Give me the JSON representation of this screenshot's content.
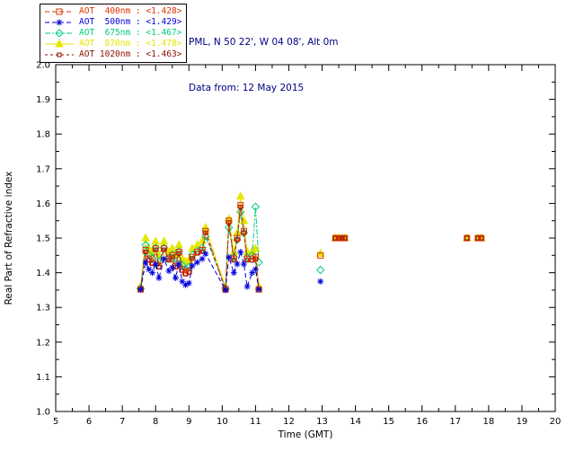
{
  "header": {
    "location": "PML, N 50 22', W 04 08', Alt 0m",
    "date_line": "Data from: 12 May 2015",
    "text_color": "#000080"
  },
  "chart_data": {
    "type": "line",
    "title": "",
    "xlabel": "Time (GMT)",
    "ylabel": "Real Part of Refractive index",
    "xlim": [
      5,
      20
    ],
    "ylim": [
      1.0,
      2.0
    ],
    "xticks": [
      5,
      6,
      7,
      8,
      9,
      10,
      11,
      12,
      13,
      14,
      15,
      16,
      17,
      18,
      19,
      20
    ],
    "yticks": [
      1.0,
      1.1,
      1.2,
      1.3,
      1.4,
      1.5,
      1.6,
      1.7,
      1.8,
      1.9,
      2.0
    ],
    "grid": false,
    "legend_position": "top-left-outside",
    "series": [
      {
        "name": "AOT  400nm",
        "avg": "<1.428>",
        "color": "#dd3300",
        "marker": "square",
        "marker_size": 3,
        "dash": "5,3",
        "z": 3,
        "segments": [
          [
            [
              7.55,
              1.352
            ],
            [
              7.7,
              1.465
            ],
            [
              7.8,
              1.44
            ],
            [
              7.9,
              1.43
            ],
            [
              8.0,
              1.47
            ],
            [
              8.1,
              1.42
            ],
            [
              8.25,
              1.47
            ],
            [
              8.4,
              1.44
            ],
            [
              8.5,
              1.45
            ],
            [
              8.6,
              1.42
            ],
            [
              8.7,
              1.46
            ],
            [
              8.8,
              1.41
            ],
            [
              8.9,
              1.4
            ],
            [
              9.0,
              1.405
            ],
            [
              9.1,
              1.445
            ],
            [
              9.25,
              1.46
            ],
            [
              9.4,
              1.465
            ],
            [
              9.5,
              1.52
            ],
            [
              10.1,
              1.352
            ],
            [
              10.2,
              1.55
            ],
            [
              10.35,
              1.44
            ],
            [
              10.45,
              1.5
            ],
            [
              10.55,
              1.595
            ],
            [
              10.65,
              1.52
            ],
            [
              10.75,
              1.44
            ],
            [
              10.9,
              1.44
            ],
            [
              11.0,
              1.445
            ],
            [
              11.1,
              1.352
            ]
          ],
          [
            [
              12.95,
              1.45
            ]
          ],
          [
            [
              13.4,
              1.5
            ],
            [
              13.5,
              1.5
            ],
            [
              13.6,
              1.5
            ],
            [
              13.68,
              1.5
            ]
          ],
          [
            [
              17.35,
              1.5
            ]
          ],
          [
            [
              17.68,
              1.5
            ],
            [
              17.78,
              1.5
            ]
          ]
        ]
      },
      {
        "name": "AOT  500nm",
        "avg": "<1.429>",
        "color": "#0000dd",
        "marker": "asterisk",
        "marker_size": 3.5,
        "dash": "5,3",
        "z": 4,
        "segments": [
          [
            [
              7.55,
              1.352
            ],
            [
              7.7,
              1.43
            ],
            [
              7.8,
              1.41
            ],
            [
              7.9,
              1.4
            ],
            [
              8.0,
              1.425
            ],
            [
              8.1,
              1.385
            ],
            [
              8.25,
              1.44
            ],
            [
              8.4,
              1.405
            ],
            [
              8.5,
              1.415
            ],
            [
              8.6,
              1.385
            ],
            [
              8.7,
              1.425
            ],
            [
              8.8,
              1.375
            ],
            [
              8.9,
              1.365
            ],
            [
              9.0,
              1.37
            ],
            [
              9.1,
              1.42
            ],
            [
              9.25,
              1.43
            ],
            [
              9.4,
              1.44
            ],
            [
              9.5,
              1.455
            ],
            [
              10.1,
              1.35
            ],
            [
              10.2,
              1.445
            ],
            [
              10.35,
              1.4
            ],
            [
              10.45,
              1.425
            ],
            [
              10.55,
              1.46
            ],
            [
              10.65,
              1.425
            ],
            [
              10.75,
              1.36
            ],
            [
              10.9,
              1.4
            ],
            [
              11.0,
              1.41
            ],
            [
              11.1,
              1.352
            ]
          ],
          [
            [
              12.95,
              1.375
            ]
          ]
        ]
      },
      {
        "name": "AOT  675nm",
        "avg": "<1.467>",
        "color": "#00cc80",
        "marker": "diamond",
        "marker_size": 3,
        "dash": "6,2,2,2",
        "z": 1,
        "segments": [
          [
            [
              7.55,
              1.355
            ],
            [
              7.7,
              1.48
            ],
            [
              7.8,
              1.452
            ],
            [
              7.9,
              1.442
            ],
            [
              8.0,
              1.472
            ],
            [
              8.1,
              1.432
            ],
            [
              8.25,
              1.472
            ],
            [
              8.4,
              1.442
            ],
            [
              8.5,
              1.452
            ],
            [
              8.6,
              1.432
            ],
            [
              8.7,
              1.462
            ],
            [
              8.8,
              1.422
            ],
            [
              8.9,
              1.412
            ],
            [
              9.0,
              1.417
            ],
            [
              9.1,
              1.452
            ],
            [
              9.25,
              1.462
            ],
            [
              9.4,
              1.472
            ],
            [
              9.5,
              1.505
            ],
            [
              10.1,
              1.355
            ],
            [
              10.2,
              1.53
            ],
            [
              10.35,
              1.445
            ],
            [
              10.45,
              1.495
            ],
            [
              10.55,
              1.575
            ],
            [
              10.65,
              1.515
            ],
            [
              10.75,
              1.445
            ],
            [
              10.9,
              1.45
            ],
            [
              11.0,
              1.59
            ],
            [
              11.1,
              1.43
            ]
          ],
          [
            [
              12.95,
              1.408
            ]
          ]
        ]
      },
      {
        "name": "AOT  870nm",
        "avg": "<1.478>",
        "color": "#e6e600",
        "marker": "triangle",
        "marker_size": 3,
        "dash": "",
        "z": 0,
        "segments": [
          [
            [
              7.55,
              1.36
            ],
            [
              7.7,
              1.5
            ],
            [
              7.8,
              1.47
            ],
            [
              7.9,
              1.46
            ],
            [
              8.0,
              1.49
            ],
            [
              8.1,
              1.45
            ],
            [
              8.25,
              1.49
            ],
            [
              8.4,
              1.46
            ],
            [
              8.5,
              1.47
            ],
            [
              8.6,
              1.45
            ],
            [
              8.7,
              1.48
            ],
            [
              8.8,
              1.44
            ],
            [
              8.9,
              1.432
            ],
            [
              9.0,
              1.437
            ],
            [
              9.1,
              1.47
            ],
            [
              9.25,
              1.48
            ],
            [
              9.4,
              1.492
            ],
            [
              9.5,
              1.53
            ],
            [
              10.1,
              1.36
            ],
            [
              10.2,
              1.555
            ],
            [
              10.35,
              1.46
            ],
            [
              10.45,
              1.515
            ],
            [
              10.55,
              1.62
            ],
            [
              10.65,
              1.55
            ],
            [
              10.75,
              1.46
            ],
            [
              10.9,
              1.462
            ],
            [
              11.0,
              1.47
            ],
            [
              11.1,
              1.36
            ]
          ],
          [
            [
              12.95,
              1.455
            ]
          ],
          [
            [
              13.4,
              1.5
            ],
            [
              13.5,
              1.5
            ],
            [
              13.6,
              1.5
            ],
            [
              13.68,
              1.5
            ]
          ],
          [
            [
              17.35,
              1.5
            ]
          ],
          [
            [
              17.68,
              1.5
            ],
            [
              17.78,
              1.5
            ]
          ]
        ]
      },
      {
        "name": "AOT 1020nm",
        "avg": "<1.463>",
        "color": "#8b1000",
        "marker": "square",
        "marker_size": 2,
        "dash": "3,3",
        "z": 2,
        "segments": [
          [
            [
              7.55,
              1.35
            ],
            [
              7.7,
              1.46
            ],
            [
              7.8,
              1.436
            ],
            [
              7.9,
              1.426
            ],
            [
              8.0,
              1.466
            ],
            [
              8.1,
              1.416
            ],
            [
              8.25,
              1.466
            ],
            [
              8.4,
              1.436
            ],
            [
              8.5,
              1.446
            ],
            [
              8.6,
              1.416
            ],
            [
              8.7,
              1.456
            ],
            [
              8.8,
              1.406
            ],
            [
              8.9,
              1.396
            ],
            [
              9.0,
              1.401
            ],
            [
              9.1,
              1.441
            ],
            [
              9.25,
              1.456
            ],
            [
              9.4,
              1.461
            ],
            [
              9.5,
              1.515
            ],
            [
              10.1,
              1.35
            ],
            [
              10.2,
              1.545
            ],
            [
              10.35,
              1.436
            ],
            [
              10.45,
              1.495
            ],
            [
              10.55,
              1.59
            ],
            [
              10.65,
              1.515
            ],
            [
              10.75,
              1.436
            ],
            [
              10.9,
              1.436
            ],
            [
              11.0,
              1.44
            ],
            [
              11.1,
              1.35
            ]
          ],
          [
            [
              13.4,
              1.5
            ],
            [
              13.5,
              1.5
            ],
            [
              13.6,
              1.5
            ],
            [
              13.68,
              1.5
            ]
          ],
          [
            [
              17.35,
              1.5
            ]
          ],
          [
            [
              17.68,
              1.5
            ],
            [
              17.78,
              1.5
            ]
          ]
        ]
      }
    ]
  }
}
